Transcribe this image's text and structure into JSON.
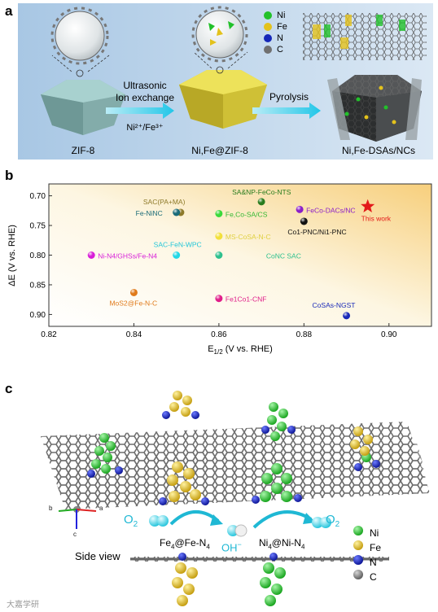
{
  "panel_a": {
    "label": "a",
    "step1": "ZIF-8",
    "arrow1_line1": "Ultrasonic",
    "arrow1_line2": "Ion exchange",
    "arrow1_sub": "Ni²⁺/Fe³⁺",
    "step2": "Ni,Fe@ZIF-8",
    "arrow2": "Pyrolysis",
    "step3": "Ni,Fe-DSAs/NCs",
    "legend": [
      {
        "label": "Ni",
        "color": "#22c12a"
      },
      {
        "label": "Fe",
        "color": "#e3c21c"
      },
      {
        "label": "N",
        "color": "#1527b8"
      },
      {
        "label": "C",
        "color": "#707070"
      }
    ]
  },
  "panel_b": {
    "label": "b"
  },
  "chart_data": {
    "type": "scatter",
    "xlabel": "E1/2 (V vs. RHE)",
    "ylabel": "ΔE (V vs. RHE)",
    "xlim": [
      0.82,
      0.91
    ],
    "ylim": [
      0.68,
      0.92
    ],
    "y_inverted": true,
    "xticks": [
      "0.82",
      "0.84",
      "0.86",
      "0.88",
      "0.90"
    ],
    "yticks": [
      "0.70",
      "0.75",
      "0.80",
      "0.85",
      "0.90"
    ],
    "points": [
      {
        "label": "SAC(PA+MA)",
        "x": 0.851,
        "y": 0.728,
        "color": "#8d7a2a"
      },
      {
        "label": "Fe-NiNC",
        "x": 0.85,
        "y": 0.728,
        "color": "#1a6b78"
      },
      {
        "label": "SA&NP-FeCo-NTS",
        "x": 0.87,
        "y": 0.71,
        "color": "#287c1e"
      },
      {
        "label": "Fe,Co-SA/CS",
        "x": 0.86,
        "y": 0.73,
        "color": "#3ad93a"
      },
      {
        "label": "FeCo-DACs/NC",
        "x": 0.879,
        "y": 0.723,
        "color": "#8a1ec8"
      },
      {
        "label": "This work",
        "x": 0.895,
        "y": 0.718,
        "color": "#e31a1a"
      },
      {
        "label": "Co1-PNC/Ni1-PNC",
        "x": 0.88,
        "y": 0.743,
        "color": "#111111"
      },
      {
        "label": "MS-CoSA-N-C",
        "x": 0.86,
        "y": 0.768,
        "color": "#f2e03a"
      },
      {
        "label": "Ni-N4/GHSs/Fe-N4",
        "x": 0.83,
        "y": 0.8,
        "color": "#d81ed8"
      },
      {
        "label": "SAC-FeN-WPC",
        "x": 0.85,
        "y": 0.8,
        "color": "#22d8e6"
      },
      {
        "label": "CoNC SAC",
        "x": 0.86,
        "y": 0.8,
        "color": "#2ec08e"
      },
      {
        "label": "MoS2@Fe-N-C",
        "x": 0.84,
        "y": 0.863,
        "color": "#e07a1a"
      },
      {
        "label": "Fe1Co1-CNF",
        "x": 0.86,
        "y": 0.873,
        "color": "#e01e8a"
      },
      {
        "label": "CoSAs-NGST",
        "x": 0.89,
        "y": 0.902,
        "color": "#1a2ab8"
      }
    ]
  },
  "panel_c": {
    "label": "c",
    "o2_left": "O",
    "o2_left_sub": "2",
    "o2_right": "O",
    "o2_right_sub": "2",
    "oh": "OH",
    "oh_sup": "−",
    "site_fe": "Fe",
    "site_fe_sub1": "4",
    "site_fe_mid": "@Fe-N",
    "site_fe_sub2": "4",
    "site_ni": "Ni",
    "site_ni_sub1": "4",
    "site_ni_mid": "@Ni-N",
    "site_ni_sub2": "4",
    "side_view": "Side view",
    "axis_a": "a",
    "axis_b": "b",
    "axis_c": "c",
    "watermark": "大嘉学研",
    "legend": [
      {
        "label": "Ni",
        "color": "#22c12a"
      },
      {
        "label": "Fe",
        "color": "#e3c21c"
      },
      {
        "label": "N",
        "color": "#1527b8"
      },
      {
        "label": "C",
        "color": "#707070"
      }
    ]
  }
}
